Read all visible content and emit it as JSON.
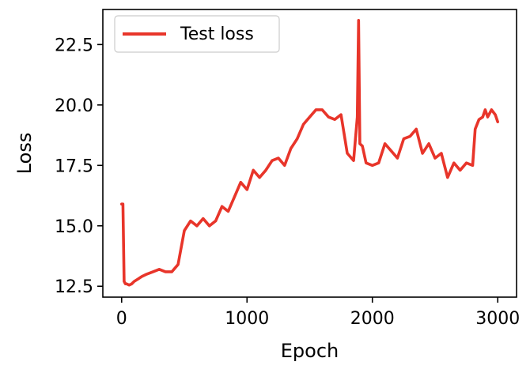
{
  "chart_data": {
    "type": "line",
    "title": "",
    "xlabel": "Epoch",
    "ylabel": "Loss",
    "xlim": [
      -150,
      3150
    ],
    "ylim": [
      12.05,
      23.95
    ],
    "xticks": [
      0,
      1000,
      2000,
      3000
    ],
    "xtick_labels": [
      "0",
      "1000",
      "2000",
      "3000"
    ],
    "yticks": [
      12.5,
      15.0,
      17.5,
      20.0,
      22.5
    ],
    "ytick_labels": [
      "12.5",
      "15.0",
      "17.5",
      "20.0",
      "22.5"
    ],
    "grid": false,
    "legend_position": "top-left",
    "series": [
      {
        "name": "Test loss",
        "color": "#e8352a",
        "x": [
          0,
          10,
          20,
          30,
          40,
          60,
          80,
          100,
          130,
          160,
          200,
          250,
          300,
          350,
          400,
          450,
          500,
          550,
          600,
          650,
          700,
          750,
          800,
          850,
          900,
          950,
          1000,
          1050,
          1100,
          1150,
          1200,
          1250,
          1300,
          1350,
          1400,
          1450,
          1500,
          1550,
          1600,
          1650,
          1700,
          1750,
          1800,
          1850,
          1880,
          1890,
          1900,
          1920,
          1950,
          2000,
          2050,
          2100,
          2150,
          2200,
          2250,
          2300,
          2350,
          2400,
          2450,
          2500,
          2550,
          2600,
          2650,
          2700,
          2750,
          2800,
          2820,
          2850,
          2880,
          2900,
          2920,
          2950,
          2980,
          3000
        ],
        "y": [
          15.9,
          15.9,
          12.7,
          12.6,
          12.6,
          12.55,
          12.6,
          12.7,
          12.8,
          12.9,
          13.0,
          13.1,
          13.2,
          13.1,
          13.1,
          13.4,
          14.8,
          15.2,
          15.0,
          15.3,
          15.0,
          15.2,
          15.8,
          15.6,
          16.2,
          16.8,
          16.5,
          17.3,
          17.0,
          17.3,
          17.7,
          17.8,
          17.5,
          18.2,
          18.6,
          19.2,
          19.5,
          19.8,
          19.8,
          19.5,
          19.4,
          19.6,
          18.0,
          17.7,
          19.5,
          23.5,
          18.4,
          18.3,
          17.6,
          17.5,
          17.6,
          18.4,
          18.1,
          17.8,
          18.6,
          18.7,
          19.0,
          18.0,
          18.4,
          17.8,
          18.0,
          17.0,
          17.6,
          17.3,
          17.6,
          17.5,
          19.0,
          19.4,
          19.5,
          19.8,
          19.5,
          19.8,
          19.6,
          19.3
        ]
      }
    ]
  }
}
